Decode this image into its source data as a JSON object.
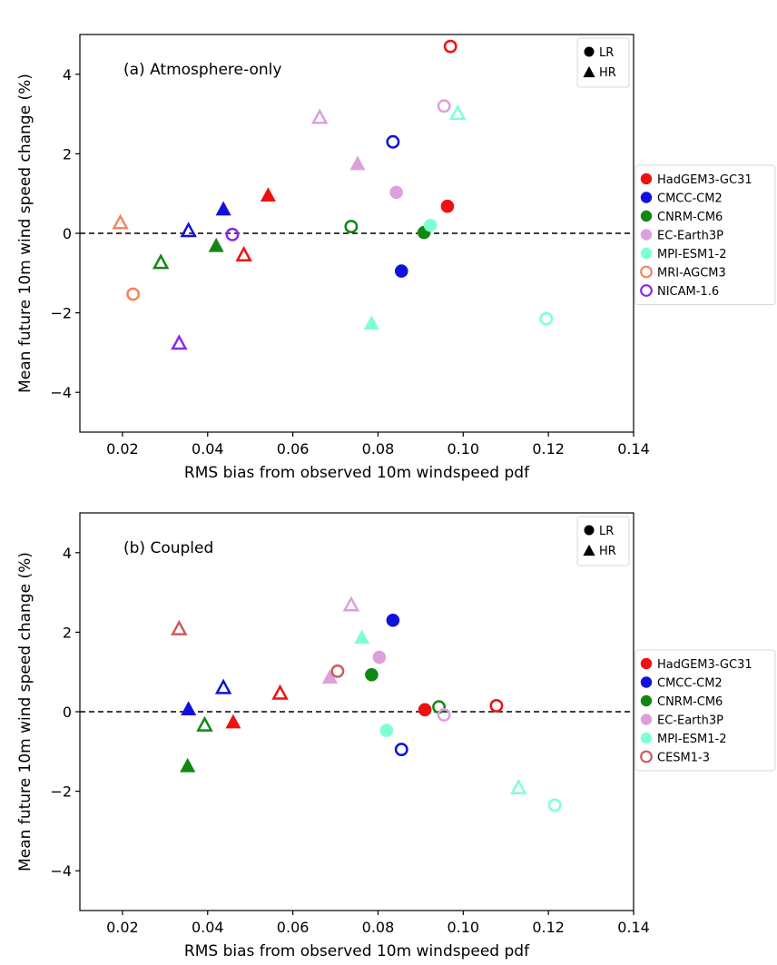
{
  "chart_data": [
    {
      "type": "scatter",
      "panel_label": "(a) Atmosphere-only",
      "xlabel": "RMS bias from observed 10m windspeed pdf",
      "ylabel": "Mean future 10m wind speed change (%)",
      "xlim": [
        0.01,
        0.14
      ],
      "ylim": [
        -5,
        5
      ],
      "xticks": [
        0.02,
        0.04,
        0.06,
        0.08,
        0.1,
        0.12,
        0.14
      ],
      "xtick_labels": [
        "0.02",
        "0.04",
        "0.06",
        "0.08",
        "0.10",
        "0.12",
        "0.14"
      ],
      "yticks": [
        -4,
        -2,
        0,
        2,
        4
      ],
      "ytick_labels": [
        "−4",
        "−2",
        "0",
        "2",
        "4"
      ],
      "reference_line": {
        "y": 0,
        "style": "dashed"
      },
      "shape_legend": [
        {
          "label": "LR",
          "marker": "circle"
        },
        {
          "label": "HR",
          "marker": "triangle"
        }
      ],
      "legend_placement": "outside-right",
      "series": [
        {
          "name": "HadGEM3-GC31",
          "color": "#ee1111",
          "points": [
            {
              "x": 0.097,
              "y": 4.7,
              "res": "LR",
              "fill": "open"
            },
            {
              "x": 0.0963,
              "y": 0.68,
              "res": "LR",
              "fill": "filled"
            },
            {
              "x": 0.0542,
              "y": 0.97,
              "res": "HR",
              "fill": "filled"
            },
            {
              "x": 0.0485,
              "y": -0.53,
              "res": "HR",
              "fill": "open"
            }
          ]
        },
        {
          "name": "CMCC-CM2",
          "color": "#1111dd",
          "points": [
            {
              "x": 0.0835,
              "y": 2.3,
              "res": "LR",
              "fill": "open"
            },
            {
              "x": 0.0855,
              "y": -0.95,
              "res": "LR",
              "fill": "filled"
            },
            {
              "x": 0.0437,
              "y": 0.62,
              "res": "HR",
              "fill": "filled"
            },
            {
              "x": 0.0355,
              "y": 0.08,
              "res": "HR",
              "fill": "open"
            }
          ]
        },
        {
          "name": "CNRM-CM6",
          "color": "#118811",
          "points": [
            {
              "x": 0.0737,
              "y": 0.17,
              "res": "LR",
              "fill": "open"
            },
            {
              "x": 0.0908,
              "y": 0.02,
              "res": "LR",
              "fill": "filled"
            },
            {
              "x": 0.042,
              "y": -0.3,
              "res": "HR",
              "fill": "filled"
            },
            {
              "x": 0.029,
              "y": -0.72,
              "res": "HR",
              "fill": "open"
            }
          ]
        },
        {
          "name": "EC-Earth3P",
          "color": "#dda0dd",
          "points": [
            {
              "x": 0.0955,
              "y": 3.2,
              "res": "LR",
              "fill": "open"
            },
            {
              "x": 0.0843,
              "y": 1.03,
              "res": "LR",
              "fill": "filled"
            },
            {
              "x": 0.0663,
              "y": 2.93,
              "res": "HR",
              "fill": "open"
            },
            {
              "x": 0.0752,
              "y": 1.76,
              "res": "HR",
              "fill": "filled"
            }
          ]
        },
        {
          "name": "MPI-ESM1-2",
          "color": "#7fffd4",
          "points": [
            {
              "x": 0.1195,
              "y": -2.15,
              "res": "LR",
              "fill": "open"
            },
            {
              "x": 0.0923,
              "y": 0.2,
              "res": "LR",
              "fill": "filled"
            },
            {
              "x": 0.0987,
              "y": 3.03,
              "res": "HR",
              "fill": "open"
            },
            {
              "x": 0.0785,
              "y": -2.25,
              "res": "HR",
              "fill": "filled"
            }
          ]
        },
        {
          "name": "MRI-AGCM3",
          "color": "#f4845f",
          "points": [
            {
              "x": 0.0225,
              "y": -1.53,
              "res": "LR",
              "fill": "open"
            },
            {
              "x": 0.0195,
              "y": 0.28,
              "res": "HR",
              "fill": "open"
            }
          ]
        },
        {
          "name": "NICAM-1.6",
          "color": "#8a2be2",
          "points": [
            {
              "x": 0.0458,
              "y": -0.03,
              "res": "LR",
              "fill": "open"
            },
            {
              "x": 0.0333,
              "y": -2.75,
              "res": "HR",
              "fill": "open"
            }
          ]
        }
      ]
    },
    {
      "type": "scatter",
      "panel_label": "(b) Coupled",
      "xlabel": "RMS bias from observed 10m windspeed pdf",
      "ylabel": "Mean future 10m wind speed change (%)",
      "xlim": [
        0.01,
        0.14
      ],
      "ylim": [
        -5,
        5
      ],
      "xticks": [
        0.02,
        0.04,
        0.06,
        0.08,
        0.1,
        0.12,
        0.14
      ],
      "xtick_labels": [
        "0.02",
        "0.04",
        "0.06",
        "0.08",
        "0.10",
        "0.12",
        "0.14"
      ],
      "yticks": [
        -4,
        -2,
        0,
        2,
        4
      ],
      "ytick_labels": [
        "−4",
        "−2",
        "0",
        "2",
        "4"
      ],
      "reference_line": {
        "y": 0,
        "style": "dashed"
      },
      "shape_legend": [
        {
          "label": "LR",
          "marker": "circle"
        },
        {
          "label": "HR",
          "marker": "triangle"
        }
      ],
      "legend_placement": "outside-right",
      "series": [
        {
          "name": "HadGEM3-GC31",
          "color": "#ee1111",
          "points": [
            {
              "x": 0.1078,
              "y": 0.15,
              "res": "LR",
              "fill": "open"
            },
            {
              "x": 0.091,
              "y": 0.05,
              "res": "LR",
              "fill": "filled"
            },
            {
              "x": 0.057,
              "y": 0.48,
              "res": "HR",
              "fill": "open"
            },
            {
              "x": 0.046,
              "y": -0.25,
              "res": "HR",
              "fill": "filled"
            }
          ]
        },
        {
          "name": "CMCC-CM2",
          "color": "#1111dd",
          "points": [
            {
              "x": 0.0835,
              "y": 2.3,
              "res": "LR",
              "fill": "filled"
            },
            {
              "x": 0.0855,
              "y": -0.95,
              "res": "LR",
              "fill": "open"
            },
            {
              "x": 0.0437,
              "y": 0.62,
              "res": "HR",
              "fill": "open"
            },
            {
              "x": 0.0355,
              "y": 0.08,
              "res": "HR",
              "fill": "filled"
            }
          ]
        },
        {
          "name": "CNRM-CM6",
          "color": "#118811",
          "points": [
            {
              "x": 0.0785,
              "y": 0.93,
              "res": "LR",
              "fill": "filled"
            },
            {
              "x": 0.0943,
              "y": 0.12,
              "res": "LR",
              "fill": "open"
            },
            {
              "x": 0.0393,
              "y": -0.32,
              "res": "HR",
              "fill": "open"
            },
            {
              "x": 0.0353,
              "y": -1.35,
              "res": "HR",
              "fill": "filled"
            }
          ]
        },
        {
          "name": "EC-Earth3P",
          "color": "#dda0dd",
          "points": [
            {
              "x": 0.0803,
              "y": 1.37,
              "res": "LR",
              "fill": "filled"
            },
            {
              "x": 0.0955,
              "y": -0.08,
              "res": "LR",
              "fill": "open"
            },
            {
              "x": 0.0737,
              "y": 2.7,
              "res": "HR",
              "fill": "open"
            },
            {
              "x": 0.0687,
              "y": 0.88,
              "res": "HR",
              "fill": "filled"
            }
          ]
        },
        {
          "name": "MPI-ESM1-2",
          "color": "#7fffd4",
          "points": [
            {
              "x": 0.1215,
              "y": -2.35,
              "res": "LR",
              "fill": "open"
            },
            {
              "x": 0.082,
              "y": -0.47,
              "res": "LR",
              "fill": "filled"
            },
            {
              "x": 0.0762,
              "y": 1.88,
              "res": "HR",
              "fill": "filled"
            },
            {
              "x": 0.113,
              "y": -1.9,
              "res": "HR",
              "fill": "open"
            }
          ]
        },
        {
          "name": "CESM1-3",
          "color": "#cd5c5c",
          "points": [
            {
              "x": 0.0705,
              "y": 1.02,
              "res": "LR",
              "fill": "open"
            },
            {
              "x": 0.0333,
              "y": 2.1,
              "res": "HR",
              "fill": "open"
            }
          ]
        }
      ]
    }
  ]
}
